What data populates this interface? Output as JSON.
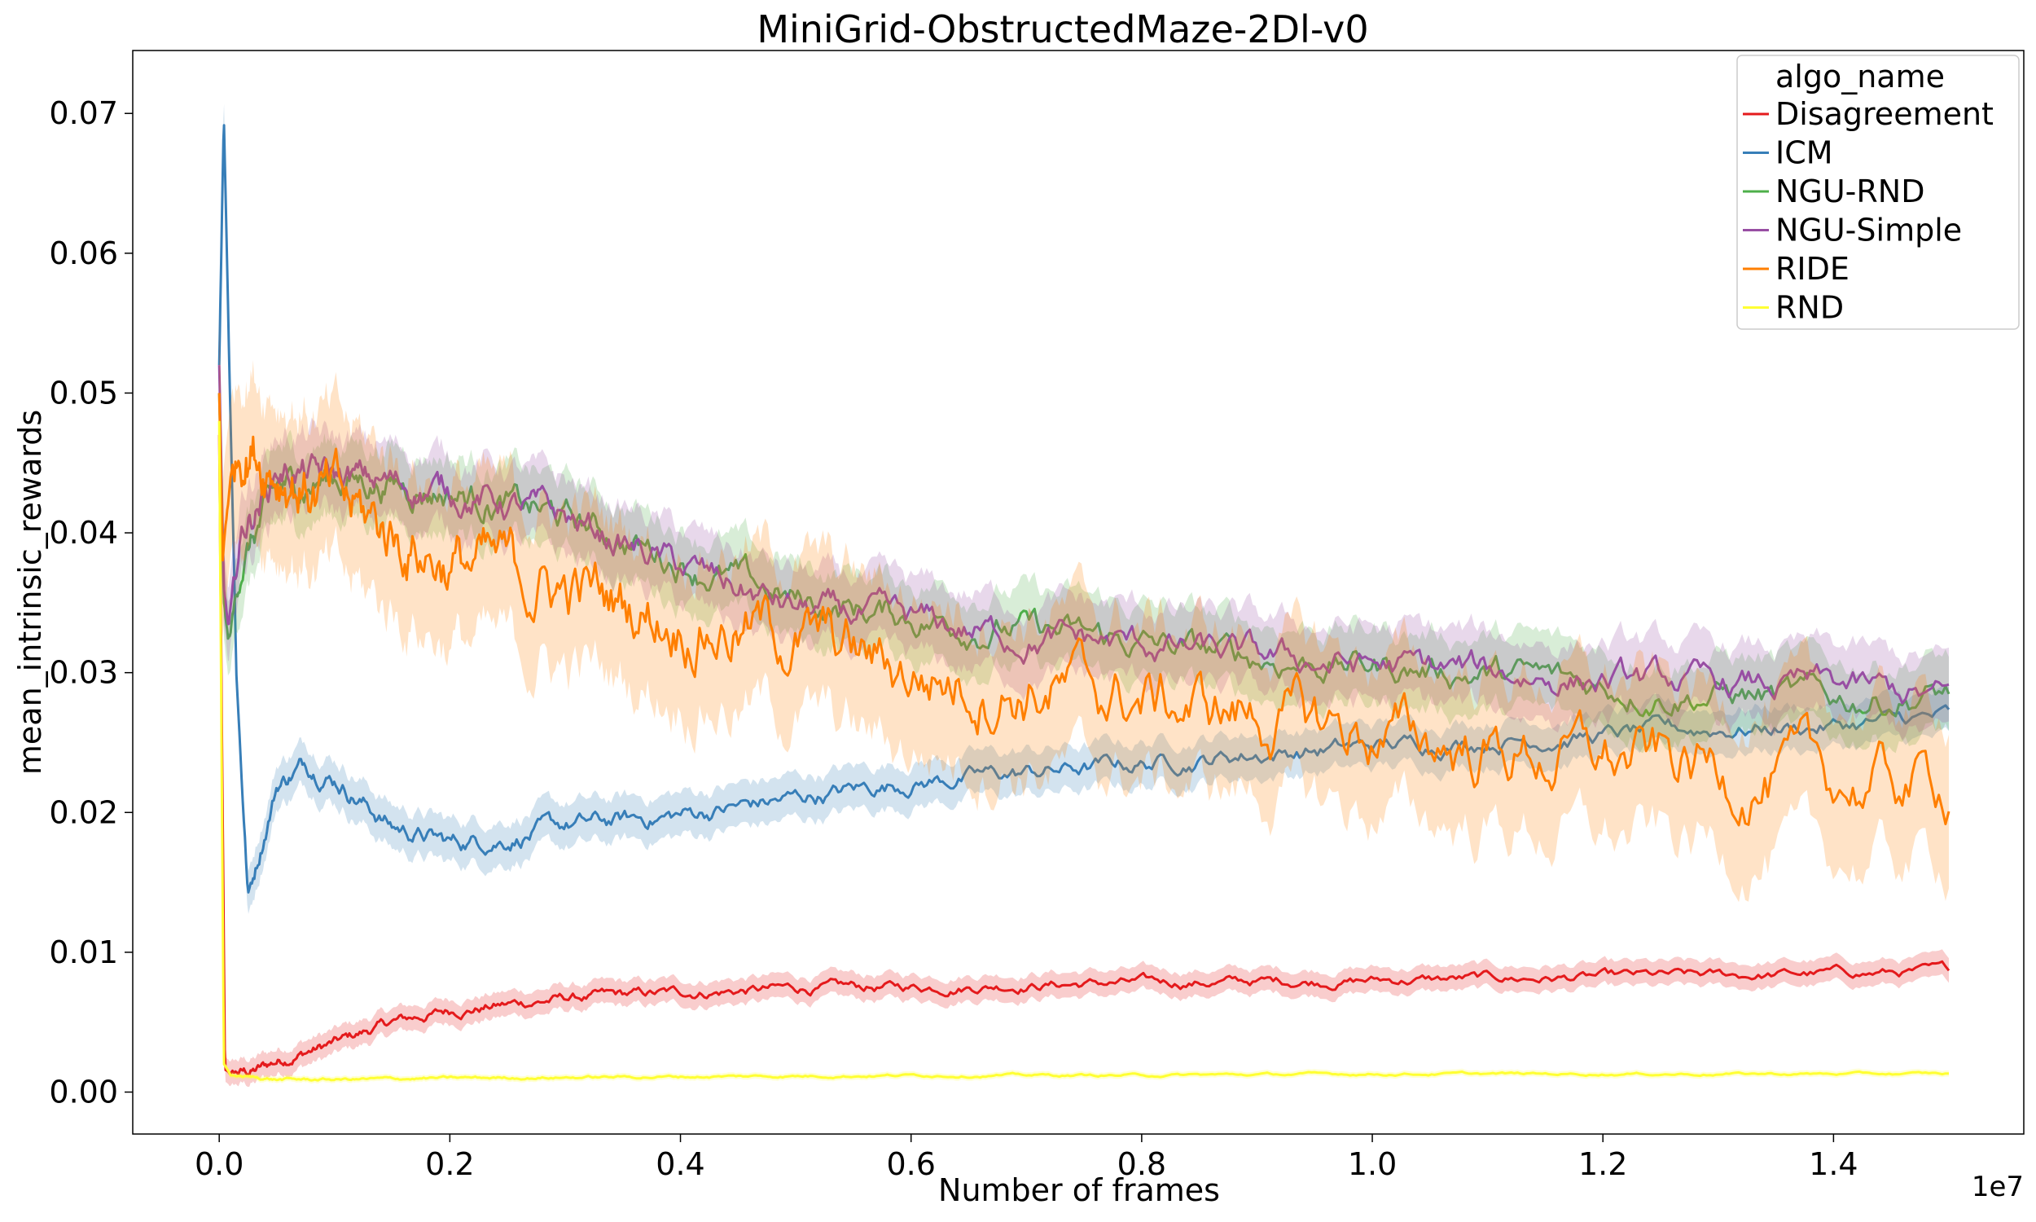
{
  "chart_data": {
    "type": "line",
    "title": "MiniGrid-ObstructedMaze-2Dl-v0",
    "xlabel": "Number of frames",
    "ylabel": "mean_intrinsic_rewards",
    "x_offset_label": "1e7",
    "xlim": [
      -0.075,
      1.565
    ],
    "ylim": [
      -0.003,
      0.0745
    ],
    "x_ticks": [
      0.0,
      0.2,
      0.4,
      0.6,
      0.8,
      1.0,
      1.2,
      1.4
    ],
    "x_tick_labels": [
      "0.0",
      "0.2",
      "0.4",
      "0.6",
      "0.8",
      "1.0",
      "1.2",
      "1.4"
    ],
    "y_ticks": [
      0.0,
      0.01,
      0.02,
      0.03,
      0.04,
      0.05,
      0.06,
      0.07
    ],
    "y_tick_labels": [
      "0.00",
      "0.01",
      "0.02",
      "0.03",
      "0.04",
      "0.05",
      "0.06",
      "0.07"
    ],
    "grid": false,
    "legend": {
      "title": "algo_name",
      "position": "top-right"
    },
    "series": [
      {
        "name": "Disagreement",
        "color": "#e41a1c",
        "x": [
          0.0,
          0.005,
          0.01,
          0.03,
          0.05,
          0.1,
          0.15,
          0.2,
          0.3,
          0.4,
          0.5,
          0.6,
          0.7,
          0.8,
          0.9,
          1.0,
          1.1,
          1.2,
          1.3,
          1.4,
          1.5
        ],
        "y": [
          0.047,
          0.0015,
          0.0013,
          0.0015,
          0.0022,
          0.0035,
          0.005,
          0.0058,
          0.0067,
          0.0071,
          0.0074,
          0.0075,
          0.0077,
          0.0078,
          0.0079,
          0.008,
          0.0081,
          0.0082,
          0.0083,
          0.0085,
          0.0086
        ],
        "noise": 0.0004
      },
      {
        "name": "ICM",
        "color": "#377eb8",
        "x": [
          0.0,
          0.004,
          0.008,
          0.015,
          0.025,
          0.05,
          0.075,
          0.1,
          0.15,
          0.2,
          0.25,
          0.3,
          0.4,
          0.5,
          0.6,
          0.7,
          0.8,
          0.9,
          1.0,
          1.1,
          1.2,
          1.3,
          1.4,
          1.5
        ],
        "y": [
          0.052,
          0.07,
          0.055,
          0.03,
          0.014,
          0.022,
          0.0235,
          0.0225,
          0.019,
          0.0178,
          0.0182,
          0.019,
          0.0198,
          0.021,
          0.0222,
          0.0228,
          0.0235,
          0.0242,
          0.0247,
          0.0252,
          0.0255,
          0.026,
          0.0262,
          0.0268
        ],
        "noise": 0.0007
      },
      {
        "name": "NGU-RND",
        "color": "#4daf4a",
        "x": [
          0.0,
          0.004,
          0.008,
          0.02,
          0.05,
          0.1,
          0.2,
          0.3,
          0.4,
          0.5,
          0.6,
          0.7,
          0.8,
          0.9,
          1.0,
          1.1,
          1.2,
          1.3,
          1.4,
          1.5
        ],
        "y": [
          0.05,
          0.035,
          0.032,
          0.038,
          0.043,
          0.044,
          0.043,
          0.041,
          0.038,
          0.035,
          0.034,
          0.033,
          0.032,
          0.031,
          0.0305,
          0.03,
          0.029,
          0.0285,
          0.028,
          0.0285
        ],
        "noise": 0.0012
      },
      {
        "name": "NGU-Simple",
        "color": "#984ea3",
        "x": [
          0.0,
          0.004,
          0.008,
          0.02,
          0.05,
          0.1,
          0.2,
          0.3,
          0.4,
          0.5,
          0.6,
          0.7,
          0.8,
          0.9,
          1.0,
          1.1,
          1.2,
          1.3,
          1.4,
          1.5
        ],
        "y": [
          0.052,
          0.036,
          0.033,
          0.04,
          0.0445,
          0.044,
          0.043,
          0.041,
          0.0375,
          0.0345,
          0.0335,
          0.0325,
          0.032,
          0.031,
          0.0305,
          0.03,
          0.0295,
          0.029,
          0.029,
          0.028
        ],
        "noise": 0.0012
      },
      {
        "name": "RIDE",
        "color": "#ff7f00",
        "x": [
          0.0,
          0.003,
          0.008,
          0.02,
          0.05,
          0.1,
          0.2,
          0.3,
          0.4,
          0.5,
          0.6,
          0.7,
          0.8,
          0.9,
          1.0,
          1.1,
          1.2,
          1.3,
          1.4,
          1.5
        ],
        "y": [
          0.05,
          0.038,
          0.043,
          0.047,
          0.045,
          0.042,
          0.038,
          0.036,
          0.034,
          0.0325,
          0.03,
          0.029,
          0.028,
          0.027,
          0.0255,
          0.0245,
          0.0238,
          0.023,
          0.022,
          0.022
        ],
        "noise": 0.0025
      },
      {
        "name": "RND",
        "color": "#ffff33",
        "x": [
          0.0,
          0.004,
          0.01,
          0.05,
          0.1,
          0.2,
          0.4,
          0.6,
          0.8,
          1.0,
          1.2,
          1.4,
          1.5
        ],
        "y": [
          0.048,
          0.002,
          0.0012,
          0.0009,
          0.0009,
          0.001,
          0.0011,
          0.0012,
          0.0012,
          0.0013,
          0.0013,
          0.0013,
          0.0013
        ],
        "noise": 0.0001
      }
    ]
  }
}
